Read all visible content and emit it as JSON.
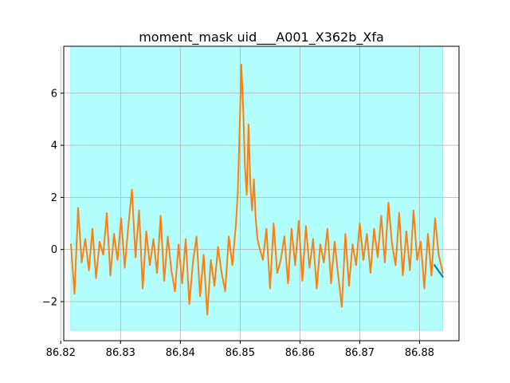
{
  "chart_data": {
    "type": "line",
    "title": "moment_mask uid___A001_X362b_Xfa",
    "xlabel": "",
    "ylabel": "",
    "xlim": [
      86.8205,
      86.8866
    ],
    "ylim": [
      -3.5,
      7.8
    ],
    "x_ticks": [
      86.82,
      86.83,
      86.84,
      86.85,
      86.86,
      86.87,
      86.88
    ],
    "x_tick_labels": [
      "86.82",
      "86.83",
      "86.84",
      "86.85",
      "86.86",
      "86.87",
      "86.88"
    ],
    "y_ticks": [
      -2,
      0,
      2,
      4,
      6
    ],
    "y_tick_labels": [
      "−2",
      "0",
      "2",
      "4",
      "6"
    ],
    "grid": true,
    "mask_region": {
      "x": [
        86.8217,
        86.8839
      ],
      "y": [
        -3.1,
        7.8
      ],
      "color": "#b3ffff"
    },
    "series": [
      {
        "color": "#1f77b4",
        "x": [
          86.8825,
          86.8839
        ],
        "y": [
          -0.6,
          -1.05
        ]
      },
      {
        "color": "#ff7f0e",
        "x": [
          86.8217,
          86.8223,
          86.8229,
          86.8235,
          86.8241,
          86.8247,
          86.8253,
          86.8259,
          86.8265,
          86.8271,
          86.8277,
          86.8283,
          86.8289,
          86.8295,
          86.8301,
          86.8307,
          86.8313,
          86.8319,
          86.8325,
          86.8331,
          86.8337,
          86.8343,
          86.8349,
          86.8355,
          86.8361,
          86.8367,
          86.8373,
          86.8379,
          86.8385,
          86.8391,
          86.8397,
          86.8403,
          86.8409,
          86.8415,
          86.8421,
          86.8427,
          86.8433,
          86.8439,
          86.8445,
          86.8451,
          86.8457,
          86.8463,
          86.8469,
          86.8475,
          86.8481,
          86.8487,
          86.8493,
          86.8496,
          86.8499,
          86.8502,
          86.8505,
          86.8508,
          86.8511,
          86.8514,
          86.8517,
          86.852,
          86.8523,
          86.8526,
          86.8529,
          86.8532,
          86.8538,
          86.8544,
          86.855,
          86.8556,
          86.8562,
          86.8568,
          86.8574,
          86.858,
          86.8586,
          86.8592,
          86.8598,
          86.8604,
          86.861,
          86.8616,
          86.8622,
          86.8628,
          86.8634,
          86.864,
          86.8646,
          86.8652,
          86.8658,
          86.8664,
          86.867,
          86.8676,
          86.8682,
          86.8688,
          86.8694,
          86.87,
          86.8706,
          86.8712,
          86.8718,
          86.8724,
          86.873,
          86.8736,
          86.8742,
          86.8748,
          86.8754,
          86.876,
          86.8766,
          86.8772,
          86.8778,
          86.8784,
          86.879,
          86.8796,
          86.8802,
          86.8808,
          86.8814,
          86.882,
          86.8826,
          86.8832,
          86.8839
        ],
        "y": [
          0.2,
          -1.7,
          1.6,
          -0.5,
          0.4,
          -0.8,
          0.8,
          -1.1,
          0.3,
          -0.2,
          1.4,
          -1.0,
          0.6,
          -0.4,
          1.2,
          -0.7,
          0.9,
          2.3,
          -0.3,
          1.5,
          -1.5,
          0.7,
          -0.6,
          0.4,
          -0.9,
          1.3,
          -1.2,
          0.5,
          -0.8,
          -1.6,
          0.2,
          -1.3,
          0.4,
          -2.1,
          -0.5,
          0.5,
          -1.8,
          -0.2,
          -2.5,
          -0.4,
          -1.4,
          0.1,
          -0.9,
          -1.6,
          0.5,
          -0.6,
          1.0,
          2.2,
          4.5,
          7.1,
          5.5,
          3.2,
          2.1,
          4.8,
          2.5,
          1.5,
          2.7,
          1.2,
          0.4,
          0.1,
          -0.4,
          0.8,
          -1.5,
          1.0,
          -0.9,
          -0.4,
          0.5,
          -1.3,
          0.8,
          -0.6,
          1.1,
          -1.2,
          0.9,
          -0.7,
          0.4,
          -1.5,
          0.2,
          -0.5,
          0.8,
          -1.3,
          0.3,
          -1.0,
          -2.2,
          0.6,
          -1.4,
          0.2,
          -0.6,
          1.0,
          -0.4,
          0.6,
          -0.9,
          0.8,
          -0.3,
          1.3,
          -0.5,
          1.8,
          0.2,
          -0.6,
          1.4,
          -1.0,
          0.7,
          -0.8,
          1.5,
          -0.4,
          0.3,
          -1.5,
          0.6,
          -1.0,
          1.2,
          -0.2,
          -0.9
        ]
      }
    ]
  }
}
